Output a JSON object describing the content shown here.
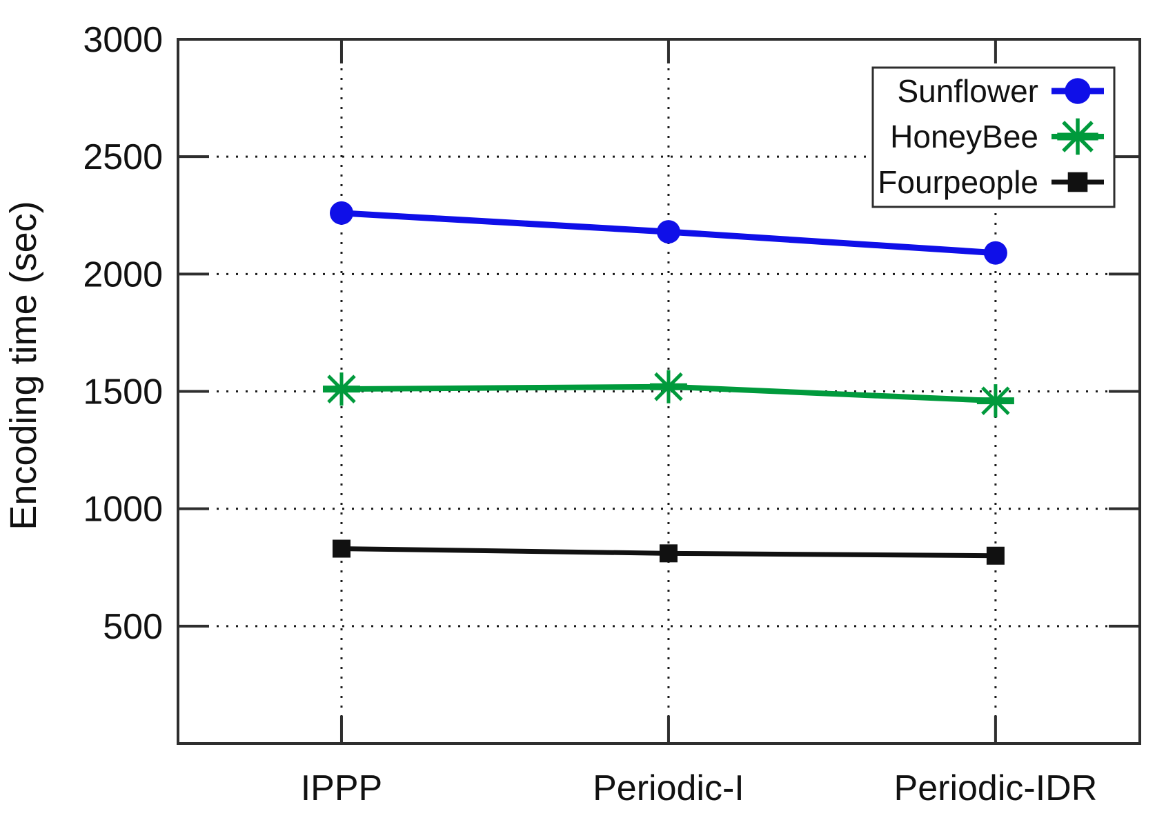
{
  "figure": {
    "background": "#ffffff",
    "axis_color": "#2e2e2e",
    "grid_color": "#1a1a1a",
    "text_color": "#111111"
  },
  "chart_data": {
    "type": "line",
    "title": "",
    "xlabel": "",
    "ylabel": "Encoding time (sec)",
    "categories": [
      "IPPP",
      "Periodic-I",
      "Periodic-IDR"
    ],
    "series": [
      {
        "name": "Sunflower",
        "marker": "circle",
        "color": "#0f0fe8",
        "values": [
          2260,
          2180,
          2090
        ]
      },
      {
        "name": "HoneyBee",
        "marker": "asterisk",
        "color": "#009a3c",
        "values": [
          1510,
          1520,
          1460
        ]
      },
      {
        "name": "Fourpeople",
        "marker": "square",
        "color": "#111111",
        "values": [
          830,
          810,
          800
        ]
      }
    ],
    "ylim": [
      0,
      3000
    ],
    "yticks": [
      500,
      1000,
      1500,
      2000,
      2500,
      3000
    ],
    "grid": true,
    "grid_style": "dotted",
    "legend_position": "top-right"
  }
}
